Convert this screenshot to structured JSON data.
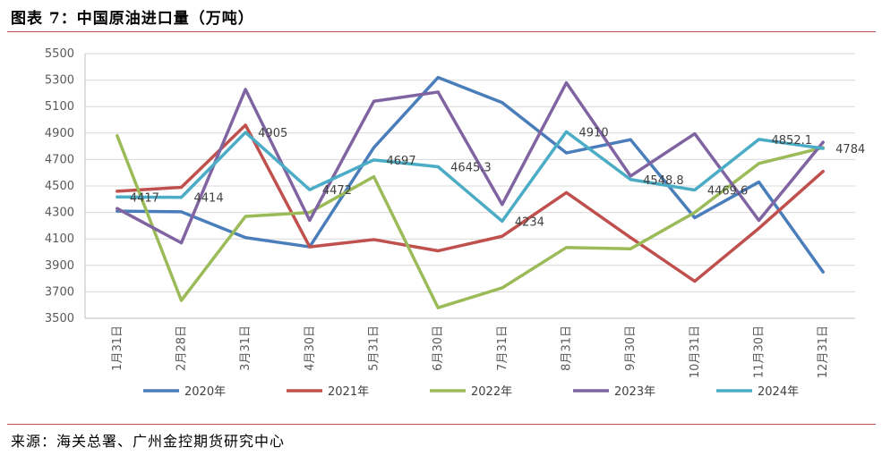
{
  "title": "图表 7：中国原油进口量（万吨）",
  "source": "来源：海关总署、广州金控期货研究中心",
  "chart_data": {
    "type": "line",
    "x": [
      "1月31日",
      "2月28日",
      "3月31日",
      "4月30日",
      "5月31日",
      "6月30日",
      "7月31日",
      "8月31日",
      "9月30日",
      "10月31日",
      "11月30日",
      "12月31日"
    ],
    "ylim": [
      3500,
      5500
    ],
    "yticks": [
      3500,
      3700,
      3900,
      4100,
      4300,
      4500,
      4700,
      4900,
      5100,
      5300,
      5500
    ],
    "grid": true,
    "legend_position": "bottom",
    "series": [
      {
        "name": "2020年",
        "color": "#4a7ebb",
        "values": [
          4310,
          4305,
          4110,
          4040,
          4790,
          5320,
          5130,
          4750,
          4850,
          4260,
          4530,
          3850
        ]
      },
      {
        "name": "2021年",
        "color": "#c0504d",
        "values": [
          4460,
          4490,
          4960,
          4040,
          4095,
          4010,
          4120,
          4450,
          4110,
          3780,
          4180,
          4610
        ]
      },
      {
        "name": "2022年",
        "color": "#9bbb59",
        "values": [
          4880,
          3635,
          4270,
          4300,
          4570,
          3580,
          3730,
          4035,
          4025,
          4300,
          4670,
          4790
        ]
      },
      {
        "name": "2023年",
        "color": "#8064a2",
        "values": [
          4330,
          4070,
          5230,
          4240,
          5140,
          5210,
          4360,
          5280,
          4575,
          4895,
          4240,
          4830
        ]
      },
      {
        "name": "2024年",
        "color": "#4bacc6",
        "values": [
          4417,
          4414,
          4905,
          4472,
          4697,
          4645.3,
          4234,
          4910,
          4548.8,
          4469.6,
          4852.1,
          4784
        ]
      }
    ],
    "data_labels": [
      {
        "series": "2024年",
        "index": 0,
        "text": "4417"
      },
      {
        "series": "2024年",
        "index": 1,
        "text": "4414"
      },
      {
        "series": "2024年",
        "index": 2,
        "text": "4905"
      },
      {
        "series": "2024年",
        "index": 3,
        "text": "4472"
      },
      {
        "series": "2024年",
        "index": 4,
        "text": "4697"
      },
      {
        "series": "2024年",
        "index": 5,
        "text": "4645.3"
      },
      {
        "series": "2024年",
        "index": 6,
        "text": "4234"
      },
      {
        "series": "2024年",
        "index": 7,
        "text": "4910"
      },
      {
        "series": "2024年",
        "index": 8,
        "text": "4548.8"
      },
      {
        "series": "2024年",
        "index": 9,
        "text": "4469.6"
      },
      {
        "series": "2024年",
        "index": 10,
        "text": "4852.1"
      },
      {
        "series": "2024年",
        "index": 11,
        "text": "4784"
      }
    ]
  }
}
